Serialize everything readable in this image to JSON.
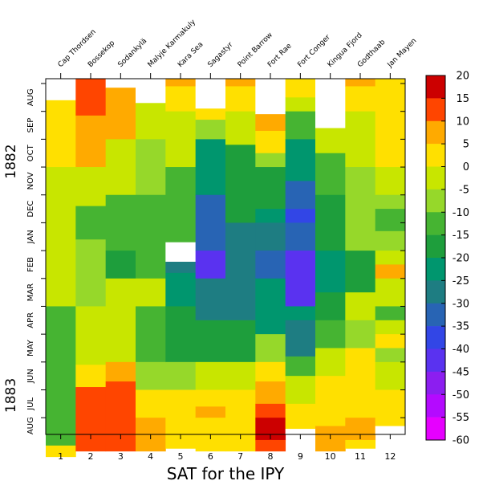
{
  "chart_data": {
    "type": "heatmap",
    "xlabel": "SAT for the IPY",
    "x_ticks": [
      "1",
      "2",
      "3",
      "4",
      "5",
      "6",
      "7",
      "8",
      "9",
      "10",
      "11",
      "12"
    ],
    "stations": [
      "Cap Thordsen",
      "Bossekop",
      "Sodankylä",
      "Malyje Karmakuly",
      "Kara Sea",
      "Sagastyr",
      "Point Barrow",
      "Fort Rae",
      "Fort Conger",
      "Kingua Fjord",
      "Godthaab",
      "Jan Mayen"
    ],
    "y_months": [
      "AUG",
      "SEP",
      "OCT",
      "NOV",
      "DEC",
      "JAN",
      "FEB",
      "MAR",
      "APR",
      "MAY",
      "JUN",
      "JUL",
      "AUG"
    ],
    "y_years": [
      "1882",
      "1883"
    ],
    "colorbar": {
      "labels": [
        "20",
        "15",
        "10",
        "5",
        "0",
        "-5",
        "-10",
        "-15",
        "-20",
        "-25",
        "-30",
        "-35",
        "-40",
        "-45",
        "-50",
        "-55",
        "-60"
      ],
      "colors": [
        "#cc0000",
        "#ff4500",
        "#ffaa00",
        "#ffe000",
        "#c8e600",
        "#96d82a",
        "#46b432",
        "#1e9e3c",
        "#00966e",
        "#1e7d82",
        "#2864b4",
        "#3246e6",
        "#5a32f0",
        "#8c1ef0",
        "#b40aff",
        "#e600ff"
      ]
    },
    "cells": [
      [
        {
          "y": 0.35,
          "v": 999
        },
        {
          "y": 0.6,
          "v": 4
        },
        {
          "y": 3.0,
          "v": -4
        },
        {
          "y": 8.0,
          "v": -13
        },
        {
          "y": 10.0,
          "v": -10
        },
        {
          "y": 13.0,
          "v": 2
        },
        {
          "y": 13.4,
          "v": 999
        }
      ],
      [
        {
          "y": 0,
          "v": 13
        },
        {
          "y": 1.15,
          "v": 9
        },
        {
          "y": 3.0,
          "v": -3
        },
        {
          "y": 4.4,
          "v": -12
        },
        {
          "y": 5.6,
          "v": -7
        },
        {
          "y": 8.0,
          "v": -3
        },
        {
          "y": 10.1,
          "v": 2
        },
        {
          "y": 10.9,
          "v": 12
        },
        {
          "y": 13.2,
          "v": 999
        }
      ],
      [
        {
          "y": 0.1,
          "v": 999
        },
        {
          "y": 0.15,
          "v": 9
        },
        {
          "y": 2.0,
          "v": -2
        },
        {
          "y": 4.0,
          "v": -12
        },
        {
          "y": 6.0,
          "v": -15
        },
        {
          "y": 7.0,
          "v": -4
        },
        {
          "y": 10.0,
          "v": 6
        },
        {
          "y": 10.7,
          "v": 12
        },
        {
          "y": 11.0,
          "v": 14
        },
        {
          "y": 11.4,
          "v": 12
        },
        {
          "y": 13.2,
          "v": 999
        }
      ],
      [
        {
          "y": 0.5,
          "v": 999
        },
        {
          "y": 0.7,
          "v": -2
        },
        {
          "y": 2.0,
          "v": -5
        },
        {
          "y": 4.0,
          "v": -13
        },
        {
          "y": 6.0,
          "v": -13
        },
        {
          "y": 7.0,
          "v": -4
        },
        {
          "y": 8.0,
          "v": -14
        },
        {
          "y": 10.0,
          "v": -6
        },
        {
          "y": 11.0,
          "v": 3
        },
        {
          "y": 12.0,
          "v": 8
        },
        {
          "y": 13.2,
          "v": 999
        }
      ],
      [
        {
          "y": 0,
          "v": 9
        },
        {
          "y": 0.1,
          "v": 3
        },
        {
          "y": 1.0,
          "v": -3
        },
        {
          "y": 3.0,
          "v": -10
        },
        {
          "y": 5.0,
          "v": -10
        },
        {
          "y": 5.7,
          "v": 999
        },
        {
          "y": 6.4,
          "v": -28
        },
        {
          "y": 6.8,
          "v": -20
        },
        {
          "y": 8.0,
          "v": -18
        },
        {
          "y": 10.0,
          "v": -7
        },
        {
          "y": 11.0,
          "v": 3
        },
        {
          "y": 13.1,
          "v": 999
        }
      ],
      [
        {
          "y": 0.6,
          "v": 999
        },
        {
          "y": 0.9,
          "v": 2
        },
        {
          "y": 1.3,
          "v": -9
        },
        {
          "y": 2.0,
          "v": -20
        },
        {
          "y": 4.0,
          "v": -32
        },
        {
          "y": 6.0,
          "v": -42
        },
        {
          "y": 7.0,
          "v": -28
        },
        {
          "y": 8.5,
          "v": -15
        },
        {
          "y": 10.0,
          "v": -3
        },
        {
          "y": 11.0,
          "v": 4
        },
        {
          "y": 11.6,
          "v": 8
        },
        {
          "y": 12.0,
          "v": 5
        },
        {
          "y": 13.2,
          "v": 999
        }
      ],
      [
        {
          "y": 0,
          "v": 8
        },
        {
          "y": 0.1,
          "v": 4
        },
        {
          "y": 1.0,
          "v": -3
        },
        {
          "y": 2.2,
          "v": -15
        },
        {
          "y": 5.0,
          "v": -25
        },
        {
          "y": 8.5,
          "v": -15
        },
        {
          "y": 10.0,
          "v": -2
        },
        {
          "y": 11.0,
          "v": 4
        },
        {
          "y": 13.2,
          "v": 999
        }
      ],
      [
        {
          "y": 1.0,
          "v": 999
        },
        {
          "y": 1.1,
          "v": 9
        },
        {
          "y": 1.7,
          "v": 4
        },
        {
          "y": 2.5,
          "v": -8
        },
        {
          "y": 3.0,
          "v": -15
        },
        {
          "y": 4.5,
          "v": -22
        },
        {
          "y": 5.0,
          "v": -26
        },
        {
          "y": 6.0,
          "v": -30
        },
        {
          "y": 7.0,
          "v": -23
        },
        {
          "y": 9.0,
          "v": -7
        },
        {
          "y": 10.0,
          "v": 2
        },
        {
          "y": 10.7,
          "v": 9
        },
        {
          "y": 11.5,
          "v": 14
        },
        {
          "y": 12.0,
          "v": 18
        },
        {
          "y": 12.8,
          "v": 14
        },
        {
          "y": 13.2,
          "v": 999
        }
      ],
      [
        {
          "y": 0,
          "v": 5
        },
        {
          "y": 0.5,
          "v": -3
        },
        {
          "y": 1.0,
          "v": -10
        },
        {
          "y": 2.0,
          "v": -21
        },
        {
          "y": 3.5,
          "v": -31
        },
        {
          "y": 4.5,
          "v": -38
        },
        {
          "y": 5.0,
          "v": -33
        },
        {
          "y": 6.0,
          "v": -40
        },
        {
          "y": 8.0,
          "v": -20
        },
        {
          "y": 8.5,
          "v": -26
        },
        {
          "y": 9.8,
          "v": -12
        },
        {
          "y": 10.5,
          "v": -3
        },
        {
          "y": 11.5,
          "v": 4
        },
        {
          "y": 12.4,
          "v": 999
        }
      ],
      [
        {
          "y": 1.5,
          "v": 999
        },
        {
          "y": 1.6,
          "v": -4
        },
        {
          "y": 2.5,
          "v": -10
        },
        {
          "y": 4.0,
          "v": -18
        },
        {
          "y": 6.0,
          "v": -22
        },
        {
          "y": 7.5,
          "v": -15
        },
        {
          "y": 8.5,
          "v": -10
        },
        {
          "y": 9.5,
          "v": -3
        },
        {
          "y": 10.5,
          "v": 4
        },
        {
          "y": 12.3,
          "v": 9
        },
        {
          "y": 13.2,
          "v": 999
        }
      ],
      [
        {
          "y": 0,
          "v": 10
        },
        {
          "y": 0.1,
          "v": 2
        },
        {
          "y": 1.0,
          "v": -1
        },
        {
          "y": 2.0,
          "v": -4
        },
        {
          "y": 3.0,
          "v": -7
        },
        {
          "y": 6.0,
          "v": -15
        },
        {
          "y": 7.5,
          "v": 0
        },
        {
          "y": 8.5,
          "v": -7
        },
        {
          "y": 9.5,
          "v": 2
        },
        {
          "y": 11.0,
          "v": 4
        },
        {
          "y": 12.0,
          "v": 8
        },
        {
          "y": 12.8,
          "v": 3
        },
        {
          "y": 13.1,
          "v": 999
        }
      ],
      [
        {
          "y": 0,
          "v": 4
        },
        {
          "y": 3.0,
          "v": -2
        },
        {
          "y": 4.0,
          "v": -7
        },
        {
          "y": 4.5,
          "v": -12
        },
        {
          "y": 5.3,
          "v": -6
        },
        {
          "y": 6.0,
          "v": -3
        },
        {
          "y": 6.5,
          "v": 6
        },
        {
          "y": 7.0,
          "v": -3
        },
        {
          "y": 8.0,
          "v": -11
        },
        {
          "y": 8.5,
          "v": -4
        },
        {
          "y": 9.0,
          "v": 2
        },
        {
          "y": 9.5,
          "v": -5
        },
        {
          "y": 10.0,
          "v": 0
        },
        {
          "y": 11.0,
          "v": 4
        },
        {
          "y": 12.3,
          "v": 999
        }
      ]
    ]
  }
}
